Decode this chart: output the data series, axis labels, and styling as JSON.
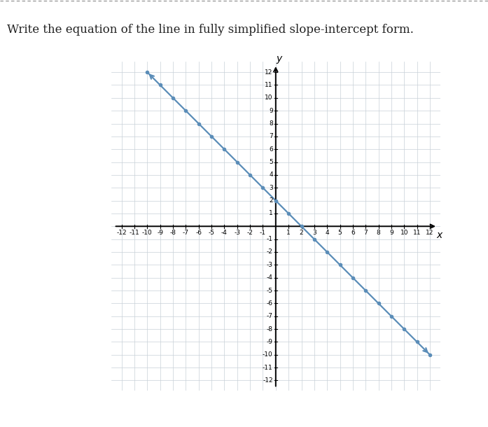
{
  "title": "Write the equation of the line in fully simplified slope-intercept form.",
  "title_fontsize": 12,
  "title_color": "#222222",
  "background_color": "#ffffff",
  "grid_color": "#c8d0d8",
  "axis_color": "#000000",
  "line_color": "#5b8db8",
  "line_width": 1.6,
  "marker_color": "#5b8db8",
  "marker_size": 4,
  "xlim": [
    -12,
    12
  ],
  "ylim": [
    -12,
    12
  ],
  "slope": -1,
  "intercept": 2,
  "xlabel": "x",
  "ylabel": "y",
  "border_dash_color": "#888888",
  "tick_fontsize": 6.5,
  "label_fontsize": 10
}
